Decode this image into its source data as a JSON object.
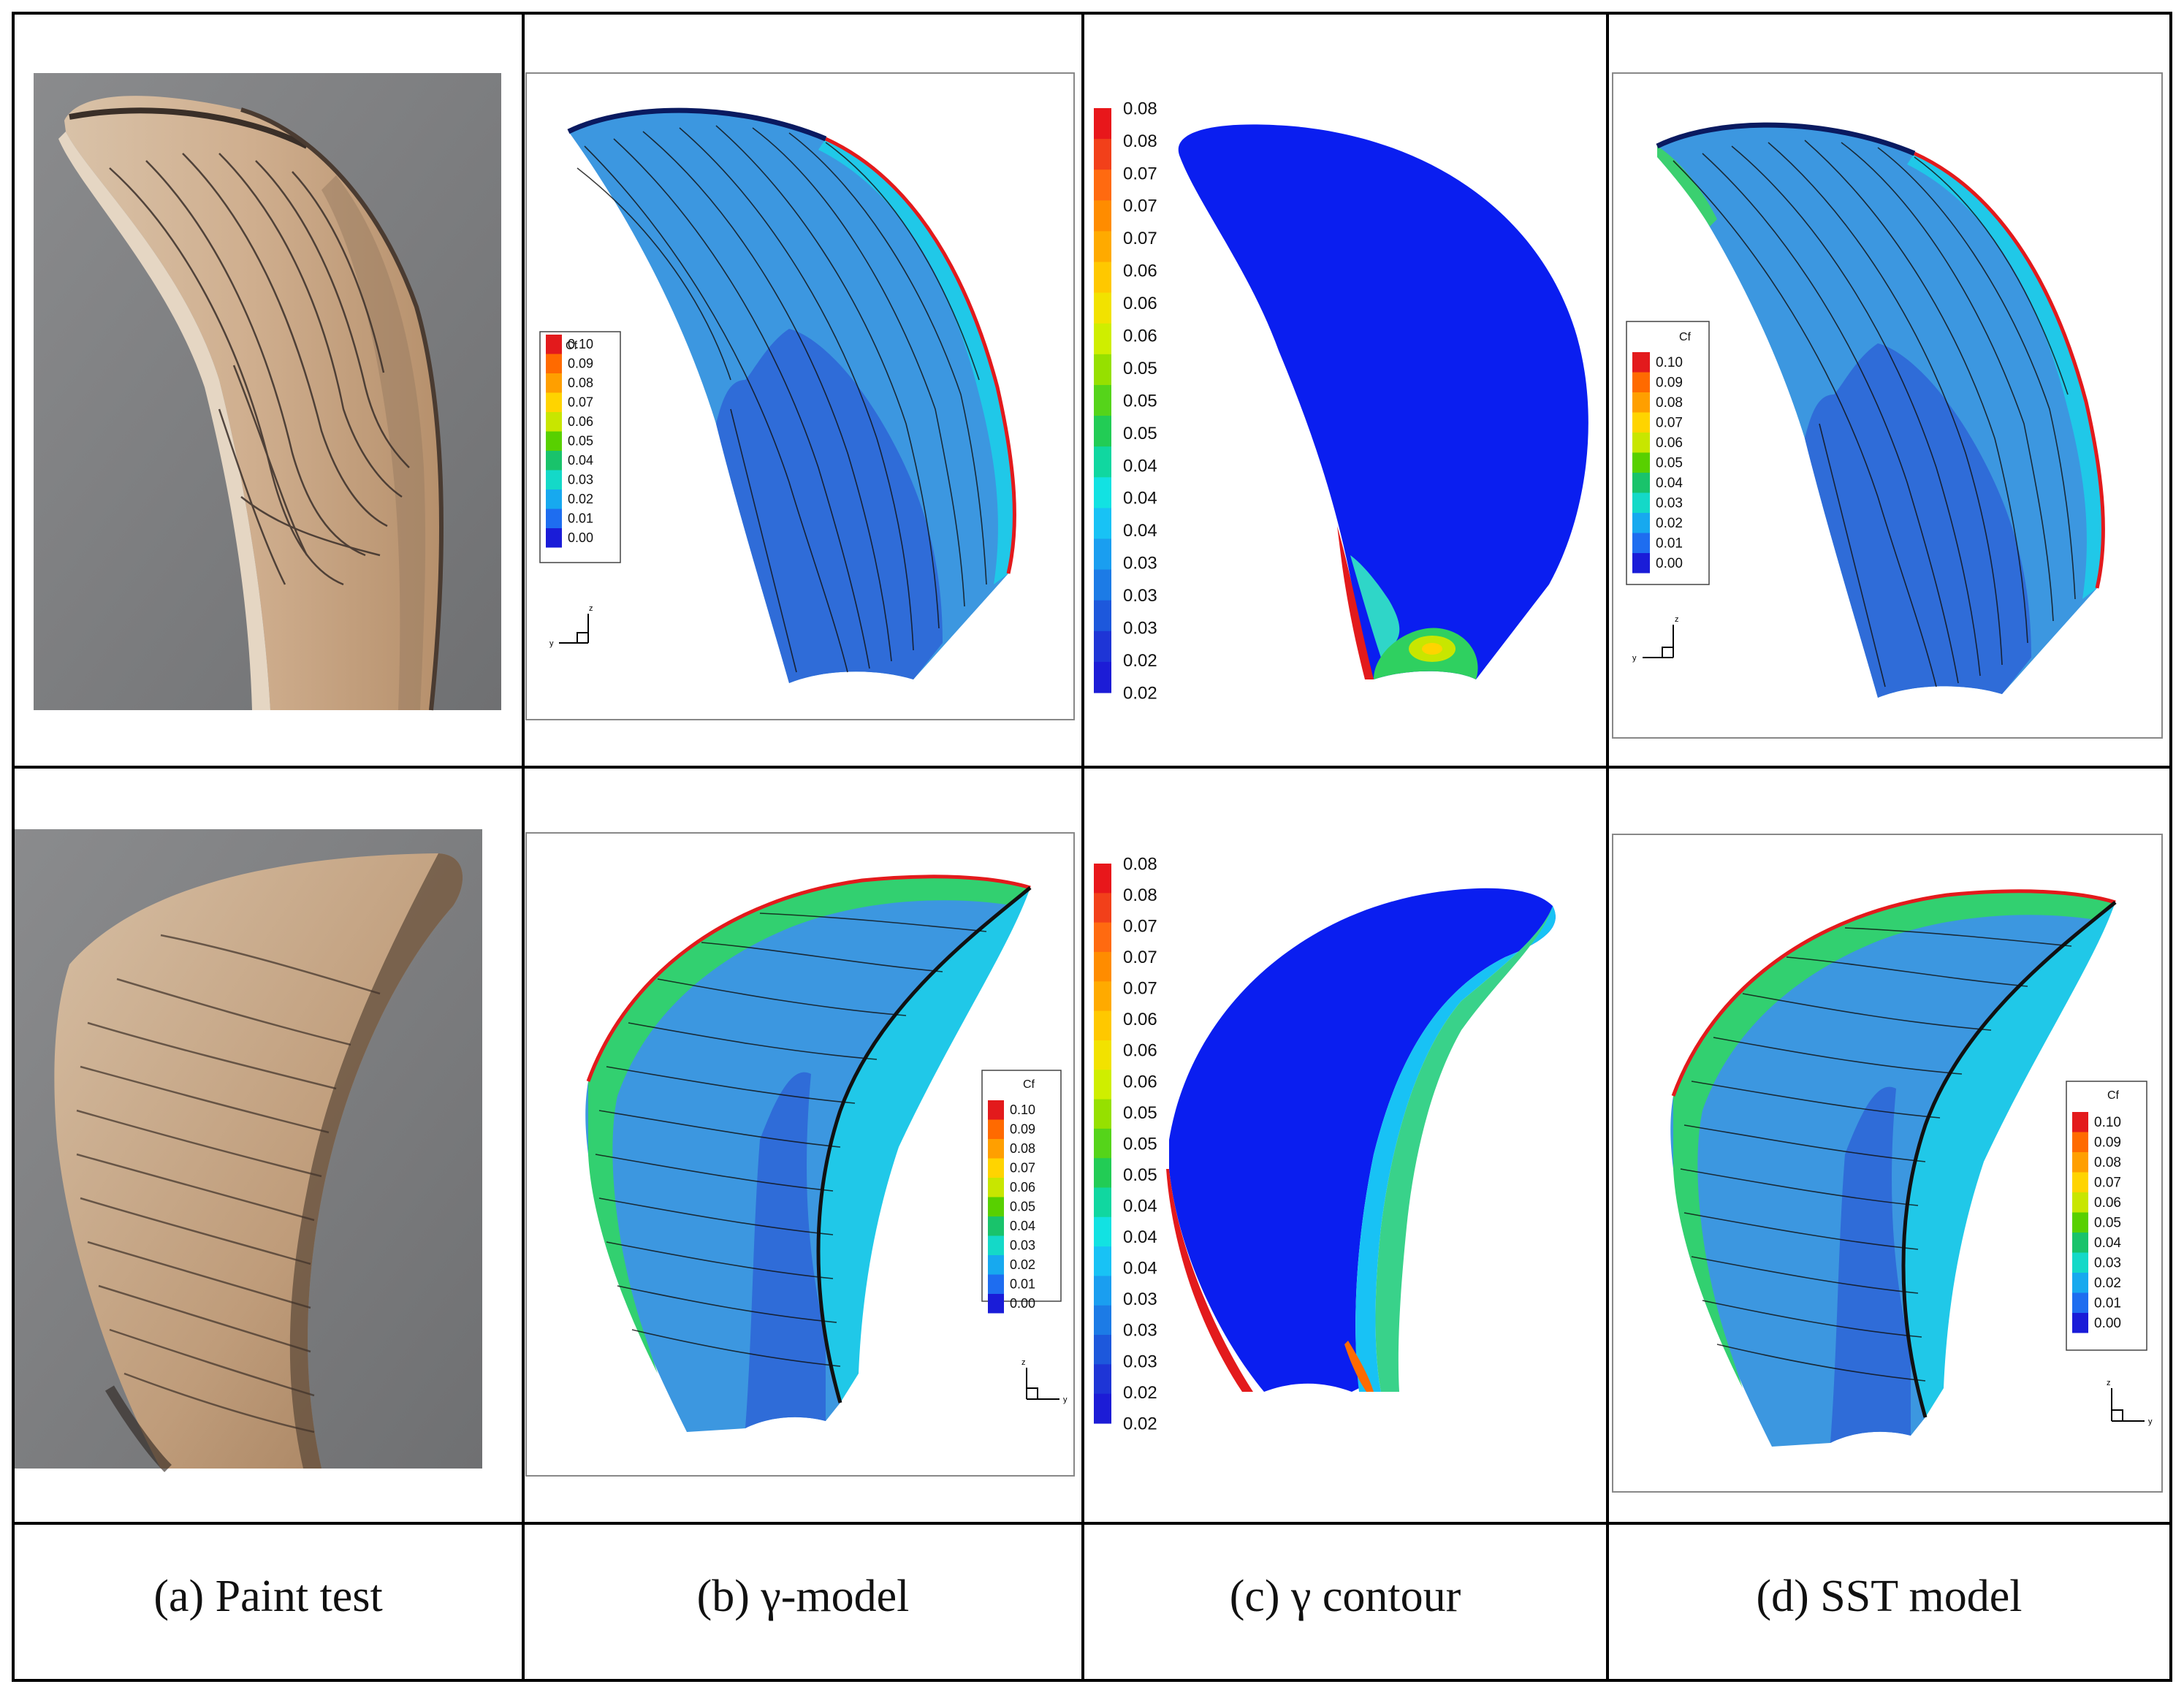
{
  "captions": {
    "a": "(a) Paint test",
    "b": "(b) γ-model",
    "c": "(c) γ contour",
    "d": "(d) SST model"
  },
  "cf_legend": {
    "title": "Cf",
    "ticks": [
      "0.10",
      "0.09",
      "0.08",
      "0.07",
      "0.06",
      "0.05",
      "0.04",
      "0.03",
      "0.02",
      "0.01",
      "0.00"
    ],
    "colors": [
      "#e31a1c",
      "#ff6a00",
      "#ff9f00",
      "#ffd400",
      "#c8e600",
      "#58d000",
      "#19c36b",
      "#14d9c8",
      "#17a9ef",
      "#1e6df0",
      "#1a1cd8"
    ]
  },
  "gamma_scale": {
    "ticks": [
      "0.08",
      "0.08",
      "0.07",
      "0.07",
      "0.07",
      "0.06",
      "0.06",
      "0.06",
      "0.05",
      "0.05",
      "0.05",
      "0.04",
      "0.04",
      "0.04",
      "0.03",
      "0.03",
      "0.03",
      "0.02",
      "0.02"
    ],
    "colors": [
      "#e8171b",
      "#f2401a",
      "#ff6a10",
      "#ff8c00",
      "#ffaa00",
      "#ffc800",
      "#f2e200",
      "#cfee00",
      "#96e000",
      "#55d41a",
      "#22cc55",
      "#10d7a0",
      "#12e2e2",
      "#18c2f5",
      "#1a9ef0",
      "#1c7be6",
      "#1d58dc",
      "#1e35d6",
      "#1c1cd6"
    ]
  },
  "axis_labels": {
    "z": "z",
    "y": "y"
  },
  "colors": {
    "blade_main": "#3c97e0",
    "blade_dark": "#2f6cd8",
    "blade_light": "#20c8e8",
    "gamma_blue": "#0a1ef0",
    "photo_bg": "#7f8082",
    "bronze": "#c9a98a"
  }
}
